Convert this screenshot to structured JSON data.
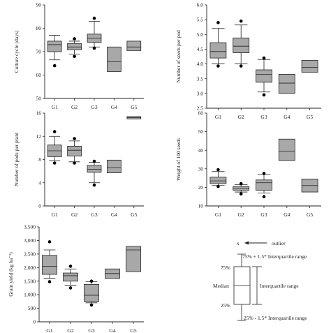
{
  "chart_data": [
    {
      "type": "box",
      "ylabel": "Culture cycle (days)",
      "categories": [
        "G1",
        "G2",
        "G3",
        "G4",
        "G5"
      ],
      "ylim": [
        50,
        90
      ],
      "yticks": [
        50,
        60,
        70,
        80,
        90
      ],
      "boxes": [
        {
          "min": 66.5,
          "q1": 70.0,
          "median": 73.0,
          "q3": 74.5,
          "max": 77.0,
          "outliers": [
            64.0
          ]
        },
        {
          "min": 69.0,
          "q1": 70.8,
          "median": 72.0,
          "q3": 73.5,
          "max": 74.5,
          "outliers": [
            75.5,
            68.0
          ]
        },
        {
          "min": 72.0,
          "q1": 74.0,
          "median": 75.7,
          "q3": 77.5,
          "max": 83.0,
          "outliers": [
            84.3,
            71.5
          ]
        },
        {
          "min": 61.5,
          "q1": 61.5,
          "median": 65.7,
          "q3": 72.0,
          "max": 72.0,
          "outliers": []
        },
        {
          "min": 70.5,
          "q1": 70.5,
          "median": 72.0,
          "q3": 74.5,
          "max": 74.5,
          "outliers": []
        }
      ]
    },
    {
      "type": "box",
      "ylabel": "Number of seeds per pod",
      "categories": [
        "G1",
        "G2",
        "G3",
        "G4",
        "G5"
      ],
      "ylim": [
        2.5,
        6.0
      ],
      "yticks": [
        "2.5",
        "3.0",
        "3.5",
        "4.0",
        "4.5",
        "5.0",
        "5.5",
        "6.0"
      ],
      "boxes": [
        {
          "min": 4.0,
          "q1": 4.2,
          "median": 4.42,
          "q3": 4.72,
          "max": 5.2,
          "outliers": [
            5.4,
            3.93
          ]
        },
        {
          "min": 4.0,
          "q1": 4.38,
          "median": 4.6,
          "q3": 4.88,
          "max": 5.32,
          "outliers": [
            5.45,
            3.93
          ]
        },
        {
          "min": 3.05,
          "q1": 3.38,
          "median": 3.65,
          "q3": 3.8,
          "max": 4.15,
          "outliers": [
            4.2,
            2.95
          ]
        },
        {
          "min": 3.0,
          "q1": 3.0,
          "median": 3.35,
          "q3": 3.65,
          "max": 3.65,
          "outliers": []
        },
        {
          "min": 3.72,
          "q1": 3.72,
          "median": 3.88,
          "q3": 4.12,
          "max": 4.12,
          "outliers": []
        }
      ]
    },
    {
      "type": "box",
      "ylabel": "Number of pods per plant",
      "categories": [
        "G1",
        "G2",
        "G3",
        "G4",
        "G5"
      ],
      "ylim": [
        0,
        16
      ],
      "yticks": [
        0,
        4,
        8,
        12,
        16
      ],
      "boxes": [
        {
          "min": 7.8,
          "q1": 8.5,
          "median": 9.5,
          "q3": 10.5,
          "max": 12.0,
          "outliers": [
            12.8,
            7.4
          ]
        },
        {
          "min": 7.6,
          "q1": 8.6,
          "median": 9.6,
          "q3": 10.3,
          "max": 11.2,
          "outliers": [
            11.6,
            7.4
          ]
        },
        {
          "min": 4.0,
          "q1": 5.8,
          "median": 6.3,
          "q3": 7.0,
          "max": 7.5,
          "outliers": [
            7.7,
            3.6
          ]
        },
        {
          "min": 5.7,
          "q1": 5.7,
          "median": 6.6,
          "q3": 7.9,
          "max": 7.9,
          "outliers": []
        },
        {
          "min": 15.0,
          "q1": 15.0,
          "median": 15.2,
          "q3": 15.4,
          "max": 15.4,
          "outliers": []
        }
      ]
    },
    {
      "type": "box",
      "ylabel": "Weight of 100 seeds",
      "categories": [
        "G1",
        "G2",
        "G3",
        "G4",
        "G5"
      ],
      "ylim": [
        10,
        60
      ],
      "yticks": [
        10,
        20,
        30,
        40,
        50,
        60
      ],
      "boxes": [
        {
          "min": 21.0,
          "q1": 22.0,
          "median": 23.5,
          "q3": 25.5,
          "max": 28.5,
          "outliers": [
            29.5,
            20.5
          ]
        },
        {
          "min": 17.5,
          "q1": 18.5,
          "median": 19.5,
          "q3": 20.5,
          "max": 21.5,
          "outliers": [
            22.0,
            16.5
          ]
        },
        {
          "min": 17.0,
          "q1": 18.5,
          "median": 22.5,
          "q3": 24.0,
          "max": 27.0,
          "outliers": [
            27.5,
            15.0
          ]
        },
        {
          "min": 34.5,
          "q1": 34.5,
          "median": 39.5,
          "q3": 46.0,
          "max": 46.0,
          "outliers": []
        },
        {
          "min": 17.5,
          "q1": 17.5,
          "median": 21.0,
          "q3": 24.5,
          "max": 24.5,
          "outliers": []
        }
      ]
    },
    {
      "type": "box",
      "ylabel": "Grain yield (kg ha⁻¹)",
      "categories": [
        "G1",
        "G2",
        "G3",
        "G4",
        "G5"
      ],
      "ylim": [
        0,
        3500
      ],
      "yticks": [
        "0",
        "500",
        "1,000",
        "1,500",
        "2,000",
        "2,500",
        "3,000",
        "3,500"
      ],
      "boxes": [
        {
          "min": 1600,
          "q1": 1750,
          "median": 2050,
          "q3": 2450,
          "max": 2650,
          "outliers": [
            2950,
            1480
          ]
        },
        {
          "min": 1350,
          "q1": 1500,
          "median": 1700,
          "q3": 1800,
          "max": 1950,
          "outliers": [
            2050,
            1250
          ]
        },
        {
          "min": 700,
          "q1": 750,
          "median": 980,
          "q3": 1380,
          "max": 1480,
          "outliers": [
            1500,
            620
          ]
        },
        {
          "min": 1600,
          "q1": 1600,
          "median": 1780,
          "q3": 1950,
          "max": 1950,
          "outliers": []
        },
        {
          "min": 1850,
          "q1": 1850,
          "median": 2650,
          "q3": 2780,
          "max": 2780,
          "outliers": []
        }
      ]
    }
  ],
  "legend_key": {
    "outlier_marker": "x",
    "outlier_label": "outlier",
    "upper_whisker": "75% + 1.5* Interquartile range",
    "q3": "75%",
    "median": "Median",
    "q1": "25%",
    "iqr": "Interquartile range",
    "lower_whisker": "25% - 1.5* Interquartile range"
  },
  "colors": {
    "box_fill": "#a8a8a8",
    "line": "#222222",
    "outlier": "#000000"
  }
}
